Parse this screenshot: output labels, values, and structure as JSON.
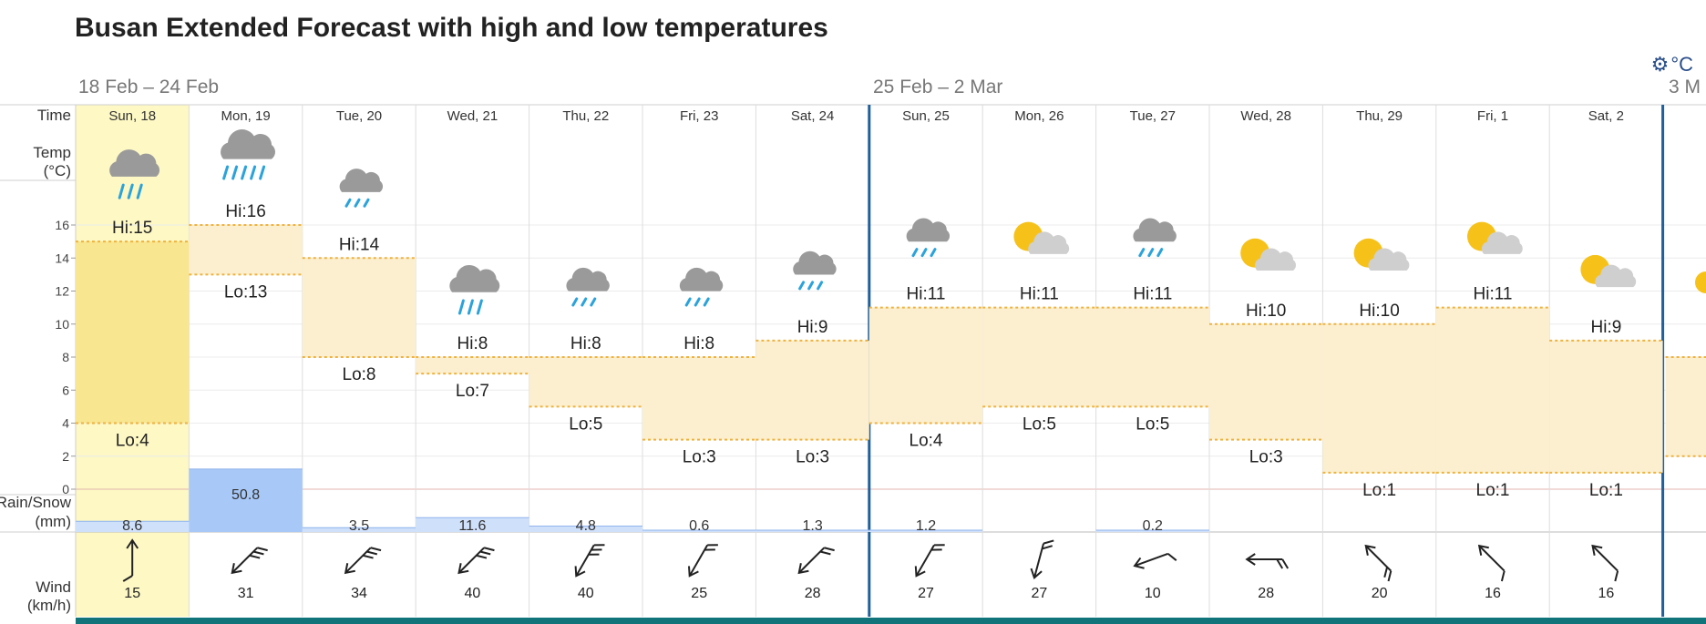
{
  "title": "Busan Extended Forecast with high and low temperatures",
  "weeks": [
    "18 Feb – 24 Feb",
    "25 Feb – 2 Mar",
    "3 M"
  ],
  "units_label": "°C",
  "row_labels": {
    "time": "Time",
    "temp": "Temp",
    "temp_unit": "(°C)",
    "rain": "Rain/Snow",
    "rain_unit": "(mm)",
    "wind": "Wind",
    "wind_unit": "(km/h)"
  },
  "colors": {
    "band": "#fcefd0",
    "today": "#fdf8c4",
    "rain": "#a8c8f8",
    "rain_light": "#cfe0fb",
    "week_line": "#1f5f9a",
    "bottom_bar": "#11747a",
    "dotted": "#f0b23c"
  },
  "chart_data": {
    "type": "table",
    "title": "Busan Extended Forecast with high and low temperatures",
    "days": [
      "Sun, 18",
      "Mon, 19",
      "Tue, 20",
      "Wed, 21",
      "Thu, 22",
      "Fri, 23",
      "Sat, 24",
      "Sun, 25",
      "Mon, 26",
      "Tue, 27",
      "Wed, 28",
      "Thu, 29",
      "Fri, 1",
      "Sat, 2"
    ],
    "hi": [
      15,
      16,
      14,
      8,
      8,
      8,
      9,
      11,
      11,
      11,
      10,
      10,
      11,
      9
    ],
    "lo": [
      4,
      13,
      8,
      7,
      5,
      3,
      3,
      4,
      5,
      5,
      3,
      1,
      1,
      1
    ],
    "rain_mm": [
      "8.6",
      "50.8",
      "3.5",
      "11.6",
      "4.8",
      "0.6",
      "1.3",
      "1.2",
      "",
      "0.2",
      "",
      "",
      "",
      ""
    ],
    "wind_kmh": [
      15,
      31,
      34,
      40,
      40,
      25,
      28,
      27,
      27,
      10,
      28,
      20,
      16,
      16
    ],
    "wind_dir_deg": [
      0,
      225,
      225,
      225,
      210,
      210,
      225,
      210,
      195,
      250,
      270,
      315,
      315,
      315
    ],
    "icons": [
      "rain",
      "heavy-rain",
      "light-rain",
      "rain",
      "light-rain",
      "light-rain",
      "light-rain",
      "light-rain",
      "partly-cloudy",
      "light-rain",
      "partly-cloudy",
      "partly-cloudy",
      "partly-cloudy",
      "partly-cloudy"
    ],
    "ytick_labels": [
      "16",
      "14",
      "12",
      "10",
      "8",
      "6",
      "4",
      "2",
      "0"
    ],
    "ylim": [
      0,
      16
    ],
    "today_index": 0
  }
}
